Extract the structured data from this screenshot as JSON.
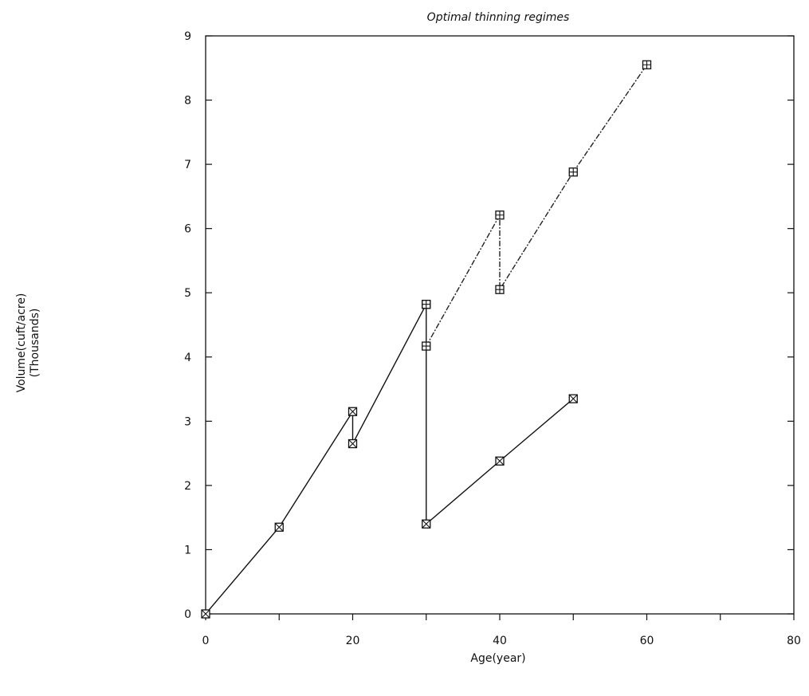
{
  "chart_data": {
    "type": "line",
    "title": "Optimal thinning regimes",
    "xlabel": "Age(year)",
    "ylabel": "Volume(cuft/acre)",
    "ylabel_sub": "(Thousands)",
    "xlim": [
      0,
      80
    ],
    "ylim": [
      0,
      9
    ],
    "x_ticks": [
      0,
      20,
      40,
      60,
      80
    ],
    "y_ticks": [
      0,
      1,
      2,
      3,
      4,
      5,
      6,
      7,
      8,
      9
    ],
    "grid": false,
    "legend": "none",
    "series": [
      {
        "marker": "square-x",
        "line": "solid",
        "points": [
          [
            0,
            0
          ],
          [
            10,
            1.35
          ],
          [
            20,
            3.15
          ],
          [
            20,
            2.65
          ],
          [
            30,
            4.82
          ],
          [
            30,
            1.4
          ],
          [
            40,
            2.38
          ],
          [
            50,
            3.35
          ]
        ]
      },
      {
        "marker": "square-plus",
        "line": "dashdot",
        "points": [
          [
            30,
            4.82
          ],
          [
            30,
            4.17
          ],
          [
            40,
            6.21
          ],
          [
            40,
            5.05
          ],
          [
            50,
            6.88
          ],
          [
            60,
            8.55
          ]
        ]
      }
    ]
  }
}
